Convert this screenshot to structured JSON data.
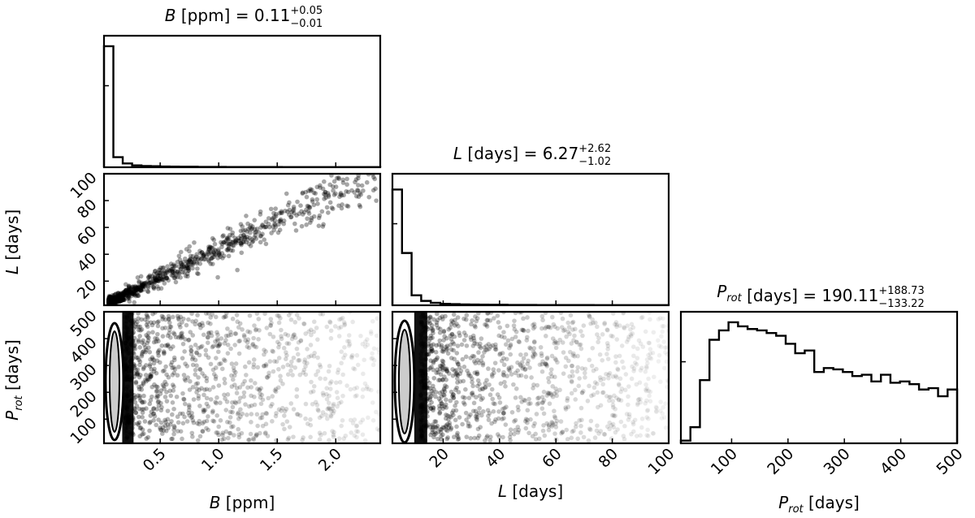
{
  "chart_data": {
    "type": "scatter",
    "plot_kind": "corner",
    "parameters": [
      {
        "id": "B",
        "symbol": "B",
        "unit": "[ppm]",
        "title_prefix": " [ppm] = ",
        "median": "0.11",
        "upper": "+0.05",
        "lower": "−0.01",
        "range": [
          0.02,
          2.38
        ],
        "ticks": [
          0.5,
          1.0,
          1.5,
          2.0
        ],
        "tick_labels": [
          "0.5",
          "1.0",
          "1.5",
          "2.0"
        ],
        "histogram": {
          "bin_edges": [
            0.02,
            0.1,
            0.18,
            0.26,
            0.34,
            0.42,
            0.5,
            0.58,
            0.66,
            0.74,
            0.82,
            0.9,
            0.98,
            1.06,
            1.14,
            1.22,
            1.3,
            1.38,
            1.46,
            1.54,
            1.62,
            1.7,
            1.78,
            1.86,
            1.94,
            2.02,
            2.1,
            2.18,
            2.26,
            2.38
          ],
          "counts": [
            0.96,
            0.08,
            0.03,
            0.015,
            0.01,
            0.008,
            0.006,
            0.005,
            0.004,
            0.004,
            0.003,
            0.003,
            0.003,
            0.002,
            0.002,
            0.002,
            0.002,
            0.002,
            0.002,
            0.001,
            0.001,
            0.001,
            0.001,
            0.001,
            0.001,
            0.001,
            0.001,
            0.001,
            0.001
          ]
        }
      },
      {
        "id": "L",
        "symbol": "L",
        "unit": "[days]",
        "title_prefix": " [days] = ",
        "median": "6.27",
        "upper": "+2.62",
        "lower": "−1.02",
        "range": [
          2,
          100
        ],
        "ticks": [
          20,
          40,
          60,
          80,
          100
        ],
        "tick_labels": [
          "20",
          "40",
          "60",
          "80",
          "100"
        ],
        "histogram": {
          "bin_edges": [
            2,
            5.4,
            8.8,
            12.2,
            15.6,
            19,
            22.4,
            25.8,
            29.2,
            32.6,
            36,
            39.4,
            42.8,
            46.2,
            49.6,
            53,
            56.4,
            59.8,
            63.2,
            66.6,
            70,
            73.4,
            76.8,
            80.2,
            83.6,
            87,
            90.4,
            93.8,
            97.2,
            100
          ],
          "counts": [
            0.93,
            0.42,
            0.08,
            0.035,
            0.02,
            0.012,
            0.009,
            0.007,
            0.006,
            0.005,
            0.004,
            0.004,
            0.003,
            0.003,
            0.003,
            0.002,
            0.002,
            0.002,
            0.002,
            0.002,
            0.002,
            0.001,
            0.001,
            0.001,
            0.001,
            0.001,
            0.001,
            0.001,
            0.001
          ]
        }
      },
      {
        "id": "Prot",
        "symbol": "P",
        "subscript": "rot",
        "unit": "[days]",
        "title_prefix": " [days] = ",
        "median": "190.11",
        "upper": "+188.73",
        "lower": "−133.22",
        "range": [
          10,
          500
        ],
        "ticks": [
          100,
          200,
          300,
          400,
          500
        ],
        "tick_labels": [
          "100",
          "200",
          "300",
          "400",
          "500"
        ],
        "histogram": {
          "bin_edges": [
            10,
            26.9,
            43.8,
            60.7,
            77.6,
            94.5,
            111.4,
            128.3,
            145.2,
            162.1,
            179,
            195.9,
            212.8,
            229.7,
            246.6,
            263.5,
            280.4,
            297.3,
            314.1,
            331,
            347.9,
            364.8,
            381.7,
            398.6,
            415.5,
            432.4,
            449.3,
            466.2,
            483.1,
            500
          ],
          "counts": [
            0.02,
            0.12,
            0.47,
            0.77,
            0.84,
            0.9,
            0.87,
            0.85,
            0.84,
            0.82,
            0.8,
            0.74,
            0.67,
            0.69,
            0.53,
            0.56,
            0.55,
            0.53,
            0.5,
            0.51,
            0.46,
            0.51,
            0.45,
            0.46,
            0.44,
            0.4,
            0.41,
            0.35,
            0.4
          ]
        }
      }
    ],
    "scatter_B_L": {
      "relation": "approximately linear",
      "slope": 42,
      "intercept": 2
    },
    "scatter_Prot": {
      "note": "dense band at low B and low L, broad spread in Prot"
    }
  }
}
